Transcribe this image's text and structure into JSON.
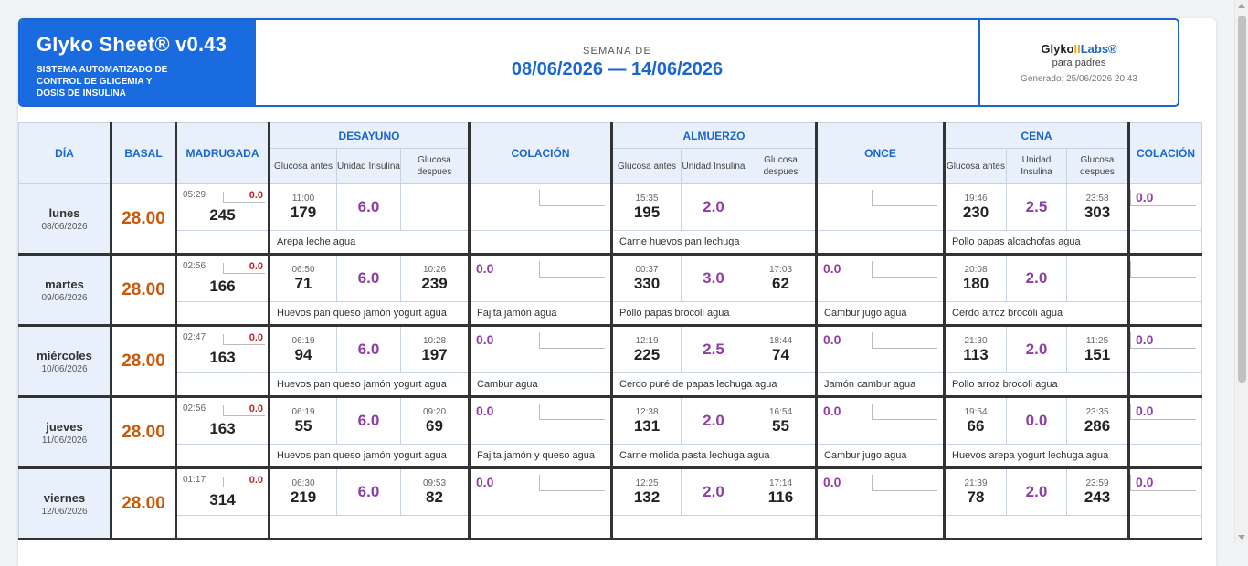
{
  "header": {
    "title": "Glyko Sheet® v0.43",
    "subtitle": "SISTEMA AUTOMATIZADO DE CONTROL DE GLICEMIA Y DOSIS DE INSULINA",
    "week_label": "SEMANA DE",
    "week_range": "08/06/2026  —  14/06/2026",
    "brand_a": "Glyko",
    "brand_b": "II",
    "brand_c": "Labs®",
    "brand_sub": "para padres",
    "generated": "Generado: 25/06/2026 20:43"
  },
  "columns": {
    "dia": "DÍA",
    "basal": "BASAL",
    "madrugada": "MADRUGADA",
    "desayuno": "DESAYUNO",
    "colacion": "COLACIÓN",
    "almuerzo": "ALMUERZO",
    "once": "ONCE",
    "cena": "CENA",
    "colacion2": "COLACIÓN",
    "g_antes": "Glucosa antes",
    "u_ins": "Unidad Insulina",
    "g_desp": "Glucosa despues"
  },
  "days": [
    {
      "name": "lunes",
      "date": "08/06/2026",
      "basal": "28.00",
      "madr": {
        "time": "05:29",
        "val": "0.0",
        "g": "245"
      },
      "des": {
        "t1": "11:00",
        "g1": "179",
        "ins": "6.0",
        "t2": "",
        "g2": ""
      },
      "col": "",
      "alm": {
        "t1": "15:35",
        "g1": "195",
        "ins": "2.0",
        "t2": "",
        "g2": ""
      },
      "once": "",
      "cena": {
        "t1": "19:46",
        "g1": "230",
        "ins": "2.5",
        "t2": "23:58",
        "g2": "303"
      },
      "col2": "0.0",
      "food": {
        "des": "Arepa leche agua",
        "col": "",
        "alm": "Carne huevos pan lechuga",
        "once": "",
        "cena": "Pollo papas alcachofas agua"
      }
    },
    {
      "name": "martes",
      "date": "09/06/2026",
      "basal": "28.00",
      "madr": {
        "time": "02:56",
        "val": "0.0",
        "g": "166"
      },
      "des": {
        "t1": "06:50",
        "g1": "71",
        "ins": "6.0",
        "t2": "10:26",
        "g2": "239"
      },
      "col": "0.0",
      "alm": {
        "t1": "00:37",
        "g1": "330",
        "ins": "3.0",
        "t2": "17:03",
        "g2": "62"
      },
      "once": "0.0",
      "cena": {
        "t1": "20:08",
        "g1": "180",
        "ins": "2.0",
        "t2": "",
        "g2": ""
      },
      "col2": "",
      "food": {
        "des": "Huevos pan queso jamón yogurt agua",
        "col": "Fajita jamón agua",
        "alm": "Pollo papas brocoli agua",
        "once": "Cambur jugo agua",
        "cena": "Cerdo arroz brocoli agua"
      }
    },
    {
      "name": "miércoles",
      "date": "10/06/2026",
      "basal": "28.00",
      "madr": {
        "time": "02:47",
        "val": "0.0",
        "g": "163"
      },
      "des": {
        "t1": "06:19",
        "g1": "94",
        "ins": "6.0",
        "t2": "10:28",
        "g2": "197"
      },
      "col": "0.0",
      "alm": {
        "t1": "12:19",
        "g1": "225",
        "ins": "2.5",
        "t2": "18:44",
        "g2": "74"
      },
      "once": "0.0",
      "cena": {
        "t1": "21:30",
        "g1": "113",
        "ins": "2.0",
        "t2": "11:25",
        "g2": "151"
      },
      "col2": "0.0",
      "food": {
        "des": "Huevos pan queso jamón yogurt agua",
        "col": "Cambur agua",
        "alm": "Cerdo puré de papas lechuga agua",
        "once": "Jamón cambur agua",
        "cena": "Pollo arroz brocoli agua"
      }
    },
    {
      "name": "jueves",
      "date": "11/06/2026",
      "basal": "28.00",
      "madr": {
        "time": "02:56",
        "val": "0.0",
        "g": "163"
      },
      "des": {
        "t1": "06:19",
        "g1": "55",
        "ins": "6.0",
        "t2": "09:20",
        "g2": "69"
      },
      "col": "0.0",
      "alm": {
        "t1": "12:38",
        "g1": "131",
        "ins": "2.0",
        "t2": "16:54",
        "g2": "55"
      },
      "once": "0.0",
      "cena": {
        "t1": "19:54",
        "g1": "66",
        "ins": "0.0",
        "t2": "23:35",
        "g2": "286"
      },
      "col2": "0.0",
      "food": {
        "des": "Huevos pan queso jamón yogurt agua",
        "col": "Fajita jamón y queso agua",
        "alm": "Carne molida pasta lechuga agua",
        "once": "Cambur jugo agua",
        "cena": "Huevos arepa yogurt lechuga agua"
      }
    },
    {
      "name": "viernes",
      "date": "12/06/2026",
      "basal": "28.00",
      "madr": {
        "time": "01:17",
        "val": "0.0",
        "g": "314"
      },
      "des": {
        "t1": "06:30",
        "g1": "219",
        "ins": "6.0",
        "t2": "09:53",
        "g2": "82"
      },
      "col": "0.0",
      "alm": {
        "t1": "12:25",
        "g1": "132",
        "ins": "2.0",
        "t2": "17:14",
        "g2": "116"
      },
      "once": "0.0",
      "cena": {
        "t1": "21:39",
        "g1": "78",
        "ins": "2.0",
        "t2": "23:59",
        "g2": "243"
      },
      "col2": "0.0",
      "food": {
        "des": "",
        "col": "",
        "alm": "",
        "once": "",
        "cena": ""
      }
    }
  ]
}
